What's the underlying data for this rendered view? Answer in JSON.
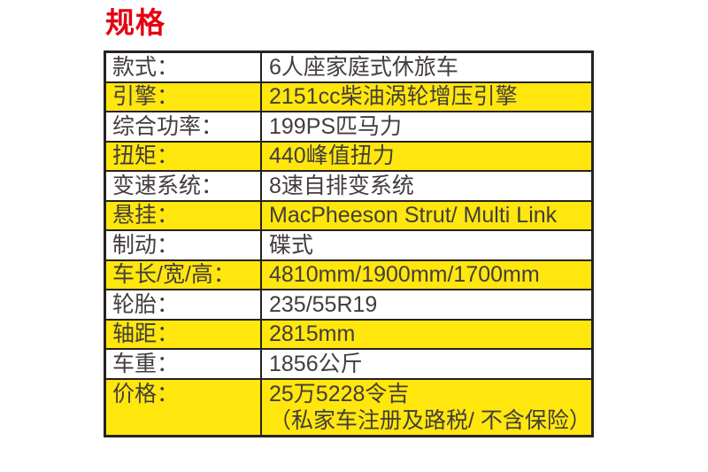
{
  "title": {
    "text": "规格",
    "color": "#e60012"
  },
  "table": {
    "highlight_color": "#ffe70d",
    "border_color": "#262220",
    "text_color": "#433d3c",
    "rows": [
      {
        "label": "款式：",
        "value_lines": [
          "6人座家庭式休旅车"
        ],
        "highlight": false
      },
      {
        "label": "引擎：",
        "value_lines": [
          "2151cc柴油涡轮增压引擎"
        ],
        "highlight": true
      },
      {
        "label": "综合功率：",
        "value_lines": [
          "199PS匹马力"
        ],
        "highlight": false
      },
      {
        "label": "扭矩：",
        "value_lines": [
          "440峰值扭力"
        ],
        "highlight": true
      },
      {
        "label": "变速系统：",
        "value_lines": [
          "8速自排变系统"
        ],
        "highlight": false
      },
      {
        "label": "悬挂：",
        "value_lines": [
          "MacPheeson Strut/ Multi Link"
        ],
        "highlight": true
      },
      {
        "label": "制动：",
        "value_lines": [
          "碟式"
        ],
        "highlight": false
      },
      {
        "label": "车长/宽/高：",
        "value_lines": [
          "4810mm/1900mm/1700mm"
        ],
        "highlight": true
      },
      {
        "label": "轮胎：",
        "value_lines": [
          "235/55R19"
        ],
        "highlight": false
      },
      {
        "label": "轴距：",
        "value_lines": [
          "2815mm"
        ],
        "highlight": true
      },
      {
        "label": "车重：",
        "value_lines": [
          "1856公斤"
        ],
        "highlight": false
      },
      {
        "label": "价格：",
        "value_lines": [
          "25万5228令吉",
          "（私家车注册及路税/ 不含保险）"
        ],
        "highlight": true
      }
    ]
  }
}
